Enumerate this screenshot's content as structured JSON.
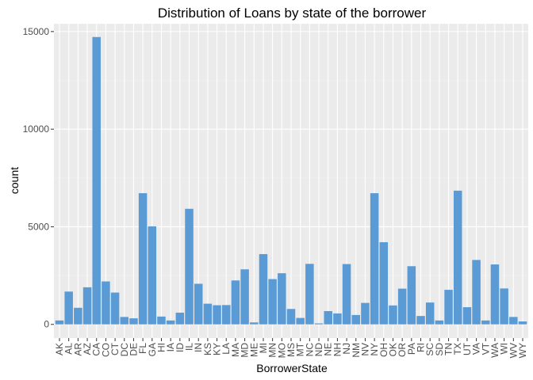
{
  "chart_data": {
    "type": "bar",
    "title": "Distribution of Loans by state of the borrower",
    "xlabel": "BorrowerState",
    "ylabel": "count",
    "ylim": [
      -700,
      15400
    ],
    "yticks": [
      0,
      5000,
      10000,
      15000
    ],
    "ytick_labels": [
      "0",
      "5000",
      "10000",
      "15000"
    ],
    "grid": true,
    "bar_color": "#5b9bd5",
    "panel_color": "#ebebeb",
    "categories": [
      "AK",
      "AL",
      "AR",
      "AZ",
      "CA",
      "CO",
      "CT",
      "DC",
      "DE",
      "FL",
      "GA",
      "HI",
      "IA",
      "ID",
      "IL",
      "IN",
      "KS",
      "KY",
      "LA",
      "MA",
      "MD",
      "ME",
      "MI",
      "MN",
      "MO",
      "MS",
      "MT",
      "NC",
      "ND",
      "NE",
      "NH",
      "NJ",
      "NM",
      "NV",
      "NY",
      "OH",
      "OK",
      "OR",
      "PA",
      "RI",
      "SC",
      "SD",
      "TN",
      "TX",
      "UT",
      "VA",
      "VT",
      "WA",
      "WI",
      "WV",
      "WY"
    ],
    "values": [
      200,
      1680,
      850,
      1900,
      14720,
      2200,
      1630,
      380,
      310,
      6720,
      5020,
      400,
      200,
      600,
      5920,
      2080,
      1060,
      980,
      990,
      2250,
      2820,
      100,
      3600,
      2320,
      2620,
      790,
      330,
      3100,
      50,
      680,
      560,
      3090,
      480,
      1100,
      6720,
      4210,
      970,
      1830,
      2980,
      430,
      1120,
      200,
      1770,
      6850,
      880,
      3300,
      200,
      3070,
      1840,
      380,
      150
    ]
  }
}
